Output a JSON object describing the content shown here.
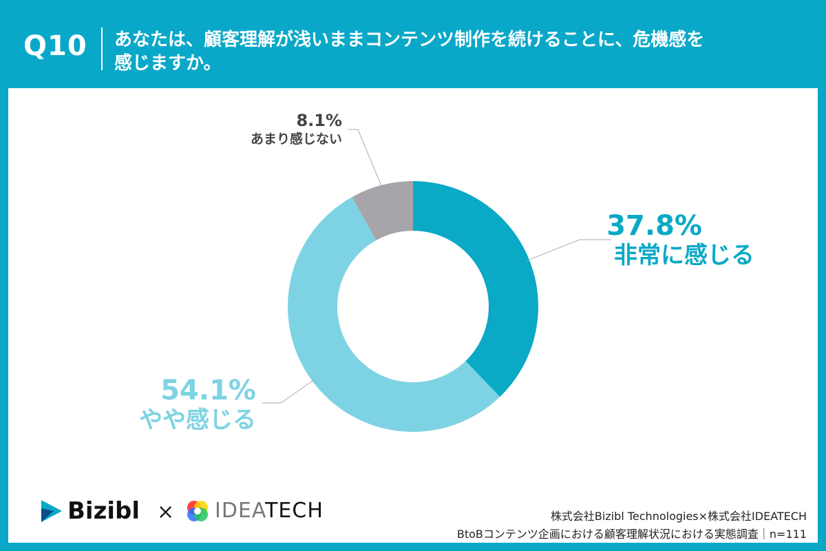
{
  "header": {
    "question_number": "Q10",
    "question_line1": "あなたは、顧客理解が浅いままコンテンツ制作を続けることに、危機感を",
    "question_line2": "感じますか。"
  },
  "chart_data": {
    "type": "pie",
    "donut": true,
    "categories": [
      "非常に感じる",
      "やや感じる",
      "あまり感じない"
    ],
    "values": [
      37.8,
      54.1,
      8.1
    ],
    "labels": [
      "37.8%",
      "54.1%",
      "8.1%"
    ],
    "colors": [
      "#0aa9c6",
      "#7dd3e3",
      "#a7a5aa"
    ]
  },
  "footer": {
    "brand1": "Bizibl",
    "times": "×",
    "brand2_idea": "IDEA",
    "brand2_tech": "TECH",
    "credit_line1": "株式会社Bizibl Technologies×株式会社IDEATECH",
    "credit_line2": "BtoBコンテンツ企画における顧客理解状況における実態調査｜n=111"
  }
}
